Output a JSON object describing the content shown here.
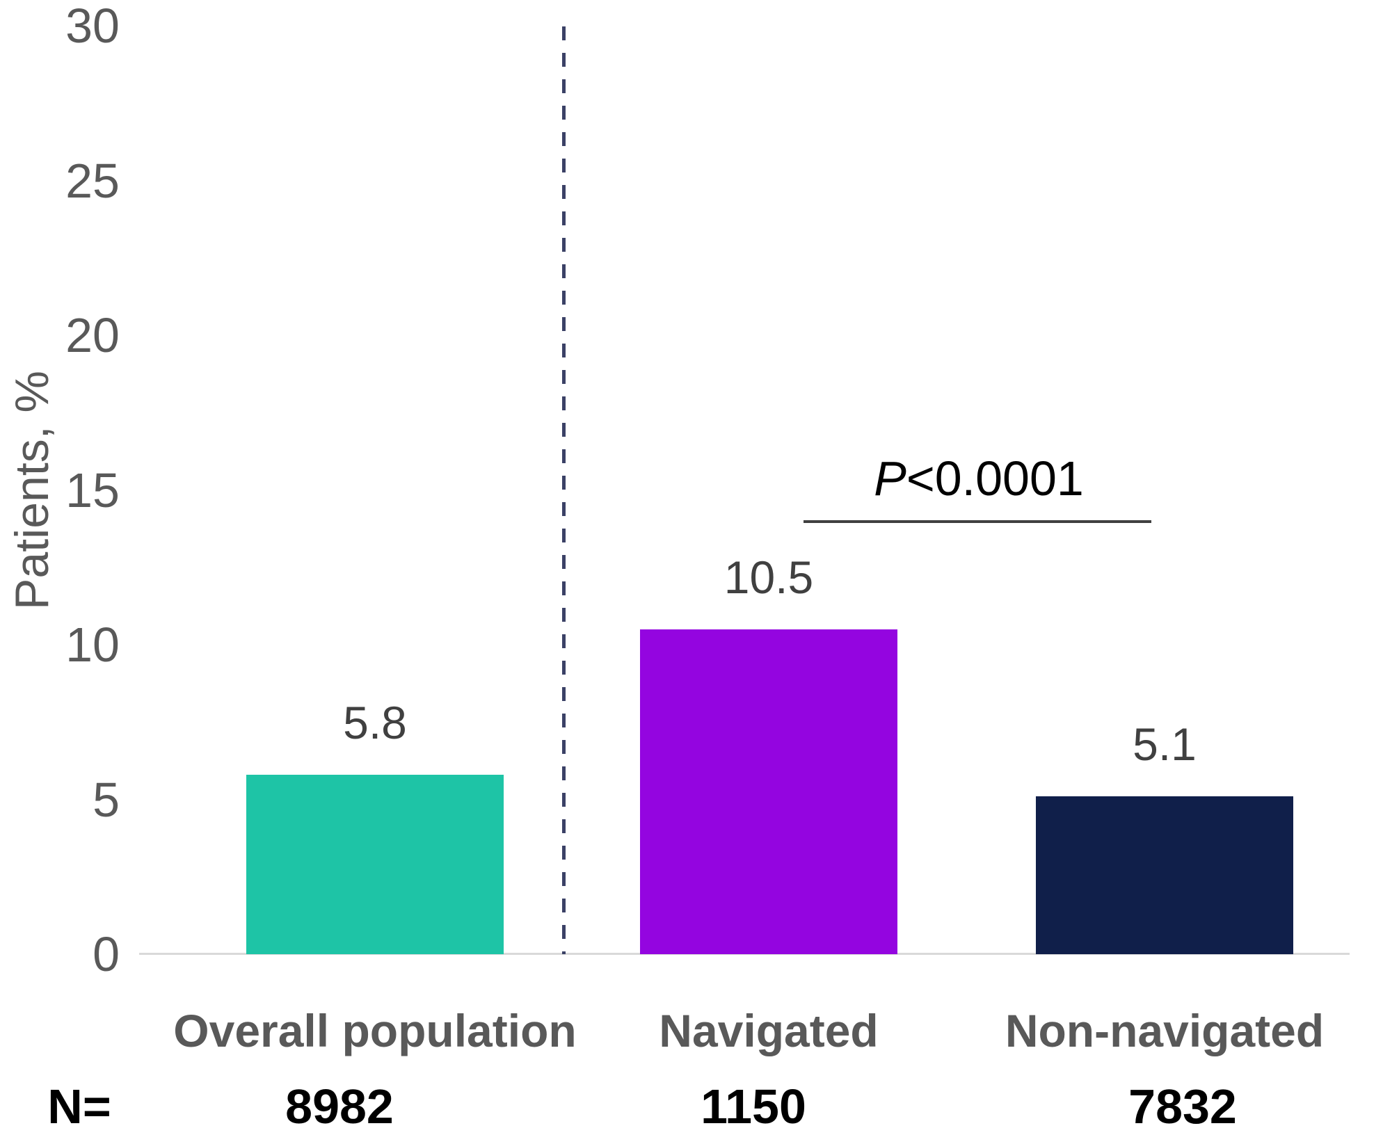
{
  "chart_data": {
    "type": "bar",
    "categories": [
      "Overall population",
      "Navigated",
      "Non-navigated"
    ],
    "values": [
      5.8,
      10.5,
      5.1
    ],
    "value_labels": [
      "5.8",
      "10.5",
      "5.1"
    ],
    "bar_colors": [
      "#1ec4a6",
      "#9405e0",
      "#101f4a"
    ],
    "n_label": "N=",
    "n_values": [
      "8982",
      "1150",
      "7832"
    ],
    "title": "",
    "xlabel": "",
    "ylabel": "Patients, %",
    "yticks": [
      0,
      5,
      10,
      15,
      20,
      25,
      30
    ],
    "ylim": [
      0,
      30
    ],
    "grid": false,
    "legend": false,
    "annotation": {
      "p_italic": "P",
      "p_rest": "<0.0001"
    },
    "separator": "dashed vertical line between first bar and the two right bars",
    "colors": {
      "axis_line": "#d9d9d9",
      "dashed_separator": "#3b4166",
      "tick_text": "#595959",
      "value_text": "#404040",
      "category_text": "#595959",
      "n_text": "#000000",
      "p_text": "#000000",
      "p_line": "#404040"
    }
  }
}
